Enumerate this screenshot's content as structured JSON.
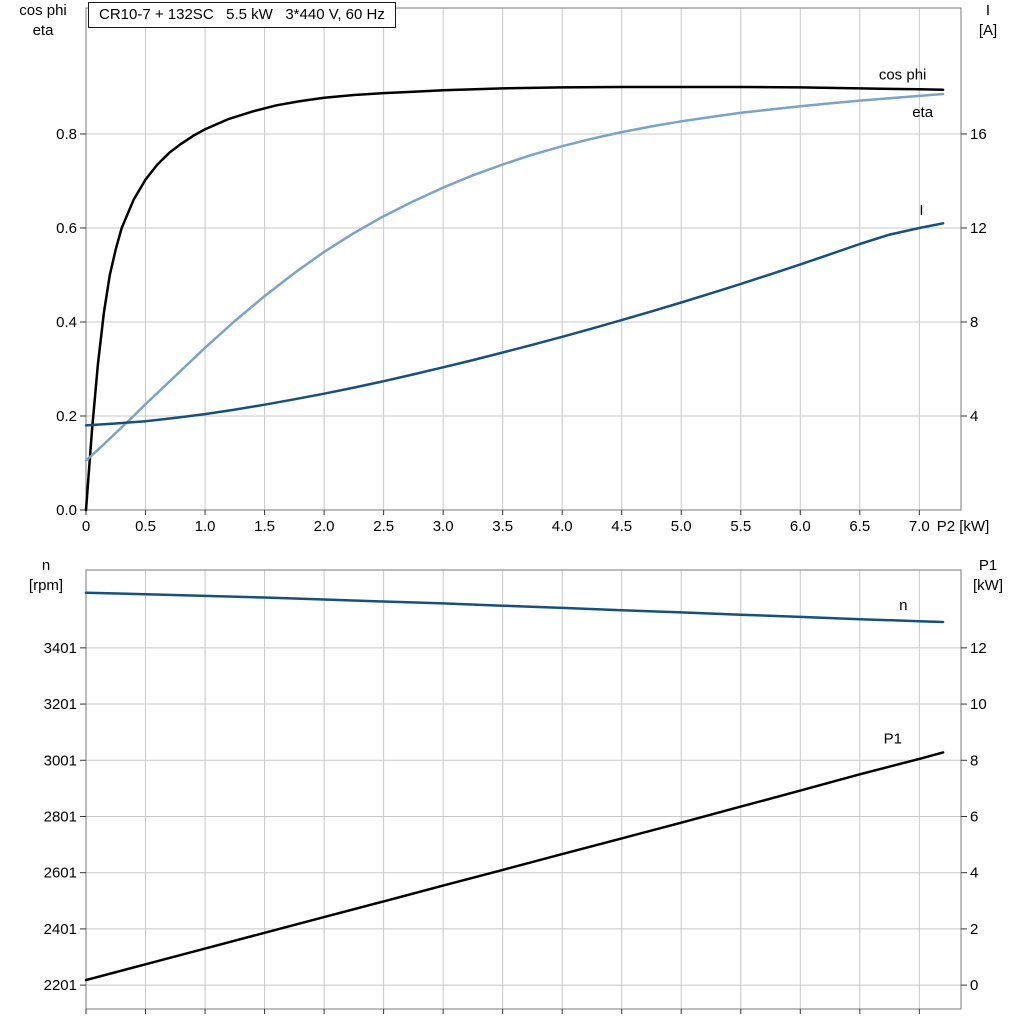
{
  "ui": {
    "title": "CR10-7 + 132SC   5.5 kW   3*440 V, 60 Hz",
    "top_chart": {
      "left_axis_line1": "cos phi",
      "left_axis_line2": "eta",
      "right_axis_line1": "I",
      "right_axis_line2": "[A]"
    },
    "bottom_chart": {
      "left_axis_line1": "n",
      "left_axis_line2": "[rpm]",
      "right_axis_line1": "P1",
      "right_axis_line2": "[kW]"
    }
  },
  "colors": {
    "grid": "#c8c8c8",
    "frame": "#7a7a7a",
    "tick": "#333333",
    "black_curve": "#000000",
    "light_blue": "#7ba2c8",
    "dark_blue": "#17507d"
  },
  "chart_data": [
    {
      "type": "line",
      "title": "CR10-7 + 132SC   5.5 kW   3*440 V, 60 Hz",
      "xlabel": "P2 [kW]",
      "x_end_label": "P2 [kW]",
      "x_range": [
        0,
        7.35
      ],
      "x_ticks": [
        0,
        0.5,
        1,
        1.5,
        2,
        2.5,
        3,
        3.5,
        4,
        4.5,
        5,
        5.5,
        6,
        6.5,
        7
      ],
      "x_tick_labels": [
        "0",
        "0.5",
        "1.0",
        "1.5",
        "2.0",
        "2.5",
        "3.0",
        "3.5",
        "4.0",
        "4.5",
        "5.0",
        "5.5",
        "6.0",
        "6.5",
        "7.0"
      ],
      "show_x_tick_labels": true,
      "grid": true,
      "legend_position": "inline-labels",
      "y_left": {
        "label": "cos phi / eta",
        "range": [
          0,
          1.068
        ],
        "ticks": [
          0,
          0.2,
          0.4,
          0.6,
          0.8
        ],
        "tick_labels": [
          "0.0",
          "0.2",
          "0.4",
          "0.6",
          "0.8"
        ]
      },
      "y_right": {
        "label": "I [A]",
        "range": [
          0,
          21.36
        ],
        "ticks": [
          4,
          8,
          12,
          16
        ],
        "tick_labels": [
          "4",
          "8",
          "12",
          "16"
        ]
      },
      "series": [
        {
          "name": "eta",
          "axis": "left",
          "color": "#000000",
          "label_at": {
            "x": 6.94,
            "v": 0.836
          },
          "points": [
            [
              0,
              0
            ],
            [
              0.05,
              0.17
            ],
            [
              0.1,
              0.31
            ],
            [
              0.15,
              0.42
            ],
            [
              0.2,
              0.5
            ],
            [
              0.25,
              0.555
            ],
            [
              0.3,
              0.6
            ],
            [
              0.4,
              0.66
            ],
            [
              0.5,
              0.703
            ],
            [
              0.6,
              0.735
            ],
            [
              0.7,
              0.76
            ],
            [
              0.8,
              0.779
            ],
            [
              0.9,
              0.796
            ],
            [
              1,
              0.81
            ],
            [
              1.2,
              0.832
            ],
            [
              1.4,
              0.848
            ],
            [
              1.6,
              0.861
            ],
            [
              1.8,
              0.87
            ],
            [
              2,
              0.877
            ],
            [
              2.25,
              0.883
            ],
            [
              2.5,
              0.887
            ],
            [
              2.75,
              0.89
            ],
            [
              3,
              0.893
            ],
            [
              3.5,
              0.897
            ],
            [
              4,
              0.899
            ],
            [
              4.5,
              0.9
            ],
            [
              5,
              0.9
            ],
            [
              5.5,
              0.9
            ],
            [
              6,
              0.899
            ],
            [
              6.5,
              0.897
            ],
            [
              7,
              0.895
            ],
            [
              7.2,
              0.894
            ]
          ]
        },
        {
          "name": "cos phi",
          "axis": "left",
          "color": "#7ba2c8",
          "label_at": {
            "x": 6.66,
            "v": 0.916
          },
          "points": [
            [
              0,
              0.105
            ],
            [
              0.1,
              0.128
            ],
            [
              0.2,
              0.152
            ],
            [
              0.3,
              0.176
            ],
            [
              0.4,
              0.2
            ],
            [
              0.5,
              0.225
            ],
            [
              0.6,
              0.249
            ],
            [
              0.7,
              0.273
            ],
            [
              0.8,
              0.297
            ],
            [
              0.9,
              0.321
            ],
            [
              1,
              0.345
            ],
            [
              1.25,
              0.402
            ],
            [
              1.5,
              0.455
            ],
            [
              1.75,
              0.504
            ],
            [
              2,
              0.549
            ],
            [
              2.25,
              0.589
            ],
            [
              2.5,
              0.625
            ],
            [
              2.75,
              0.657
            ],
            [
              3,
              0.686
            ],
            [
              3.25,
              0.712
            ],
            [
              3.5,
              0.735
            ],
            [
              3.75,
              0.756
            ],
            [
              4,
              0.774
            ],
            [
              4.25,
              0.79
            ],
            [
              4.5,
              0.804
            ],
            [
              4.75,
              0.816
            ],
            [
              5,
              0.827
            ],
            [
              5.25,
              0.836
            ],
            [
              5.5,
              0.845
            ],
            [
              5.75,
              0.852
            ],
            [
              6,
              0.859
            ],
            [
              6.25,
              0.865
            ],
            [
              6.5,
              0.871
            ],
            [
              6.75,
              0.876
            ],
            [
              7,
              0.881
            ],
            [
              7.2,
              0.885
            ]
          ]
        },
        {
          "name": "I",
          "axis": "right",
          "color": "#17507d",
          "label_at": {
            "x": 7.0,
            "v": 12.55
          },
          "points": [
            [
              0,
              3.6
            ],
            [
              0.25,
              3.68
            ],
            [
              0.5,
              3.78
            ],
            [
              0.75,
              3.92
            ],
            [
              1,
              4.08
            ],
            [
              1.25,
              4.27
            ],
            [
              1.5,
              4.48
            ],
            [
              1.75,
              4.71
            ],
            [
              2,
              4.95
            ],
            [
              2.25,
              5.21
            ],
            [
              2.5,
              5.48
            ],
            [
              2.75,
              5.77
            ],
            [
              3,
              6.07
            ],
            [
              3.25,
              6.38
            ],
            [
              3.5,
              6.7
            ],
            [
              3.75,
              7.03
            ],
            [
              4,
              7.37
            ],
            [
              4.25,
              7.72
            ],
            [
              4.5,
              8.08
            ],
            [
              4.75,
              8.45
            ],
            [
              5,
              8.83
            ],
            [
              5.25,
              9.22
            ],
            [
              5.5,
              9.62
            ],
            [
              5.75,
              10.03
            ],
            [
              6,
              10.45
            ],
            [
              6.25,
              10.88
            ],
            [
              6.5,
              11.32
            ],
            [
              6.75,
              11.72
            ],
            [
              7,
              12.0
            ],
            [
              7.2,
              12.2
            ]
          ]
        }
      ]
    },
    {
      "type": "line",
      "xlabel": "P2 [kW]",
      "x_range": [
        0,
        7.35
      ],
      "x_ticks": [
        0,
        0.5,
        1,
        1.5,
        2,
        2.5,
        3,
        3.5,
        4,
        4.5,
        5,
        5.5,
        6,
        6.5,
        7
      ],
      "x_tick_labels": [
        "0",
        "0.5",
        "1.0",
        "1.5",
        "2.0",
        "2.5",
        "3.0",
        "3.5",
        "4.0",
        "4.5",
        "5.0",
        "5.5",
        "6.0",
        "6.5",
        "7.0"
      ],
      "show_x_tick_labels": false,
      "grid": true,
      "legend_position": "inline-labels",
      "y_left": {
        "label": "n [rpm]",
        "range": [
          2116,
          3678
        ],
        "ticks": [
          2201,
          2401,
          2601,
          2801,
          3001,
          3201,
          3401
        ],
        "tick_labels": [
          "2201",
          "2401",
          "2601",
          "2801",
          "3001",
          "3201",
          "3401"
        ]
      },
      "y_right": {
        "label": "P1 [kW]",
        "range": [
          -0.85,
          14.77
        ],
        "ticks": [
          0,
          2,
          4,
          6,
          8,
          10,
          12
        ],
        "tick_labels": [
          "0",
          "2",
          "4",
          "6",
          "8",
          "10",
          "12"
        ]
      },
      "series": [
        {
          "name": "n",
          "axis": "left",
          "color": "#17507d",
          "label_at": {
            "x": 6.83,
            "v": 3535
          },
          "points": [
            [
              0,
              3597
            ],
            [
              0.5,
              3592
            ],
            [
              1,
              3586
            ],
            [
              1.5,
              3580
            ],
            [
              2,
              3573
            ],
            [
              2.5,
              3566
            ],
            [
              3,
              3559
            ],
            [
              3.5,
              3551
            ],
            [
              4,
              3543
            ],
            [
              4.5,
              3535
            ],
            [
              5,
              3527
            ],
            [
              5.5,
              3519
            ],
            [
              6,
              3511
            ],
            [
              6.5,
              3503
            ],
            [
              7,
              3496
            ],
            [
              7.2,
              3493
            ]
          ]
        },
        {
          "name": "P1",
          "axis": "right",
          "color": "#000000",
          "label_at": {
            "x": 6.7,
            "v": 8.6
          },
          "points": [
            [
              0,
              0.18
            ],
            [
              0.5,
              0.74
            ],
            [
              1,
              1.3
            ],
            [
              1.5,
              1.86
            ],
            [
              2,
              2.42
            ],
            [
              2.5,
              2.98
            ],
            [
              3,
              3.54
            ],
            [
              3.5,
              4.1
            ],
            [
              4,
              4.66
            ],
            [
              4.5,
              5.22
            ],
            [
              5,
              5.78
            ],
            [
              5.5,
              6.35
            ],
            [
              6,
              6.92
            ],
            [
              6.5,
              7.5
            ],
            [
              7,
              8.05
            ],
            [
              7.2,
              8.28
            ]
          ]
        }
      ]
    }
  ]
}
